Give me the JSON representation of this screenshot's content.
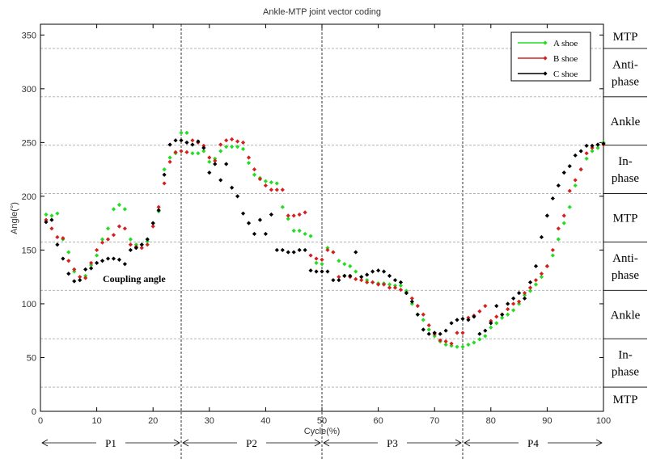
{
  "chart_data": {
    "type": "scatter",
    "title": "Ankle-MTP joint vector coding",
    "xlabel": "Cycle(%)",
    "ylabel": "Angle(°)",
    "xlim": [
      0,
      100
    ],
    "ylim": [
      0,
      360
    ],
    "xticks": [
      0,
      10,
      20,
      30,
      40,
      50,
      60,
      70,
      80,
      90,
      100
    ],
    "yticks": [
      0,
      50,
      100,
      150,
      200,
      250,
      300,
      350
    ],
    "legend_position": "top-right",
    "annotation": "Coupling angle",
    "phase_dividers": [
      25,
      50,
      75
    ],
    "phases": [
      {
        "label": "P1",
        "from": 0,
        "to": 25
      },
      {
        "label": "P2",
        "from": 25,
        "to": 50
      },
      {
        "label": "P3",
        "from": 50,
        "to": 75
      },
      {
        "label": "P4",
        "from": 75,
        "to": 100
      }
    ],
    "coordination_bands": {
      "boundaries": [
        0,
        22.5,
        67.5,
        112.5,
        157.5,
        202.5,
        247.5,
        292.5,
        337.5,
        360
      ],
      "labels": [
        {
          "text": [
            "MTP"
          ],
          "y": 11.25
        },
        {
          "text": [
            "In-",
            "phase"
          ],
          "y": 45
        },
        {
          "text": [
            "Ankle"
          ],
          "y": 90
        },
        {
          "text": [
            "Anti-",
            "phase"
          ],
          "y": 135
        },
        {
          "text": [
            "MTP"
          ],
          "y": 180
        },
        {
          "text": [
            "In-",
            "phase"
          ],
          "y": 225
        },
        {
          "text": [
            "Ankle"
          ],
          "y": 270
        },
        {
          "text": [
            "Anti-",
            "phase"
          ],
          "y": 315
        },
        {
          "text": [
            "MTP"
          ],
          "y": 348.75
        }
      ]
    },
    "series": [
      {
        "name": "A shoe",
        "color": "#22dd22",
        "x": [
          1,
          2,
          3,
          4,
          5,
          6,
          7,
          8,
          9,
          10,
          11,
          12,
          13,
          14,
          15,
          16,
          17,
          18,
          19,
          20,
          21,
          22,
          23,
          24,
          25,
          26,
          27,
          28,
          29,
          30,
          31,
          32,
          33,
          34,
          35,
          36,
          37,
          38,
          39,
          40,
          41,
          42,
          43,
          44,
          45,
          46,
          47,
          48,
          49,
          50,
          51,
          52,
          53,
          54,
          55,
          56,
          57,
          58,
          59,
          60,
          61,
          62,
          63,
          64,
          65,
          66,
          67,
          68,
          69,
          70,
          71,
          72,
          73,
          74,
          75,
          76,
          77,
          78,
          79,
          80,
          81,
          82,
          83,
          84,
          85,
          86,
          87,
          88,
          89,
          90,
          91,
          92,
          93,
          94,
          95,
          96,
          97,
          98,
          99,
          100
        ],
        "y": [
          183,
          182,
          184,
          160,
          148,
          130,
          122,
          126,
          136,
          145,
          160,
          170,
          188,
          192,
          188,
          160,
          155,
          155,
          158,
          175,
          186,
          225,
          236,
          240,
          259,
          259,
          240,
          240,
          242,
          232,
          235,
          242,
          246,
          246,
          246,
          244,
          231,
          220,
          217,
          214,
          213,
          212,
          190,
          179,
          168,
          168,
          165,
          163,
          138,
          137,
          152,
          148,
          140,
          137,
          135,
          130,
          125,
          122,
          120,
          119,
          119,
          118,
          117,
          117,
          112,
          100,
          90,
          85,
          76,
          70,
          65,
          62,
          61,
          60,
          60,
          62,
          64,
          67,
          70,
          78,
          82,
          87,
          90,
          94,
          100,
          108,
          112,
          118,
          125,
          135,
          145,
          160,
          175,
          190,
          210,
          225,
          235,
          242,
          245,
          250
        ]
      },
      {
        "name": "B shoe",
        "color": "#d42020",
        "x": [
          1,
          2,
          3,
          4,
          5,
          6,
          7,
          8,
          9,
          10,
          11,
          12,
          13,
          14,
          15,
          16,
          17,
          18,
          19,
          20,
          21,
          22,
          23,
          24,
          25,
          26,
          27,
          28,
          29,
          30,
          31,
          32,
          33,
          34,
          35,
          36,
          37,
          38,
          39,
          40,
          41,
          42,
          43,
          44,
          45,
          46,
          47,
          48,
          49,
          50,
          51,
          52,
          53,
          54,
          55,
          56,
          57,
          58,
          59,
          60,
          61,
          62,
          63,
          64,
          65,
          66,
          67,
          68,
          69,
          70,
          71,
          72,
          73,
          74,
          75,
          76,
          77,
          78,
          79,
          80,
          81,
          82,
          83,
          84,
          85,
          86,
          87,
          88,
          89,
          90,
          91,
          92,
          93,
          94,
          95,
          96,
          97,
          98,
          99,
          100
        ],
        "y": [
          178,
          170,
          162,
          161,
          140,
          132,
          125,
          124,
          138,
          150,
          157,
          160,
          164,
          172,
          170,
          155,
          153,
          152,
          155,
          172,
          190,
          212,
          232,
          241,
          242,
          241,
          252,
          250,
          247,
          236,
          233,
          248,
          252,
          253,
          251,
          250,
          236,
          225,
          216,
          210,
          206,
          206,
          206,
          182,
          182,
          183,
          185,
          145,
          142,
          141,
          150,
          148,
          125,
          126,
          125,
          123,
          122,
          120,
          120,
          118,
          118,
          115,
          115,
          113,
          110,
          105,
          98,
          90,
          80,
          72,
          66,
          65,
          63,
          73,
          73,
          87,
          89,
          93,
          98,
          84,
          88,
          90,
          95,
          100,
          102,
          110,
          115,
          122,
          128,
          135,
          150,
          170,
          182,
          205,
          215,
          225,
          240,
          245,
          248,
          248
        ]
      },
      {
        "name": "C shoe",
        "color": "#000000",
        "x": [
          1,
          2,
          3,
          4,
          5,
          6,
          7,
          8,
          9,
          10,
          11,
          12,
          13,
          14,
          15,
          16,
          17,
          18,
          19,
          20,
          21,
          22,
          23,
          24,
          25,
          26,
          27,
          28,
          29,
          30,
          31,
          32,
          33,
          34,
          35,
          36,
          37,
          38,
          39,
          40,
          41,
          42,
          43,
          44,
          45,
          46,
          47,
          48,
          49,
          50,
          51,
          52,
          53,
          54,
          55,
          56,
          57,
          58,
          59,
          60,
          61,
          62,
          63,
          64,
          65,
          66,
          67,
          68,
          69,
          70,
          71,
          72,
          73,
          74,
          75,
          76,
          77,
          78,
          79,
          80,
          81,
          82,
          83,
          84,
          85,
          86,
          87,
          88,
          89,
          90,
          91,
          92,
          93,
          94,
          95,
          96,
          97,
          98,
          99,
          100
        ],
        "y": [
          176,
          178,
          155,
          142,
          128,
          121,
          122,
          132,
          133,
          138,
          140,
          142,
          142,
          141,
          137,
          150,
          152,
          155,
          160,
          175,
          187,
          220,
          248,
          252,
          252,
          250,
          248,
          251,
          245,
          222,
          230,
          215,
          230,
          208,
          200,
          184,
          175,
          165,
          178,
          165,
          183,
          150,
          150,
          148,
          148,
          150,
          150,
          131,
          130,
          130,
          130,
          122,
          122,
          126,
          126,
          148,
          125,
          127,
          130,
          131,
          130,
          126,
          122,
          120,
          110,
          102,
          90,
          76,
          72,
          73,
          72,
          75,
          82,
          85,
          86,
          85,
          88,
          72,
          75,
          82,
          98,
          90,
          100,
          105,
          110,
          105,
          120,
          135,
          162,
          182,
          198,
          210,
          222,
          228,
          238,
          242,
          247,
          247,
          248,
          249
        ]
      }
    ]
  }
}
